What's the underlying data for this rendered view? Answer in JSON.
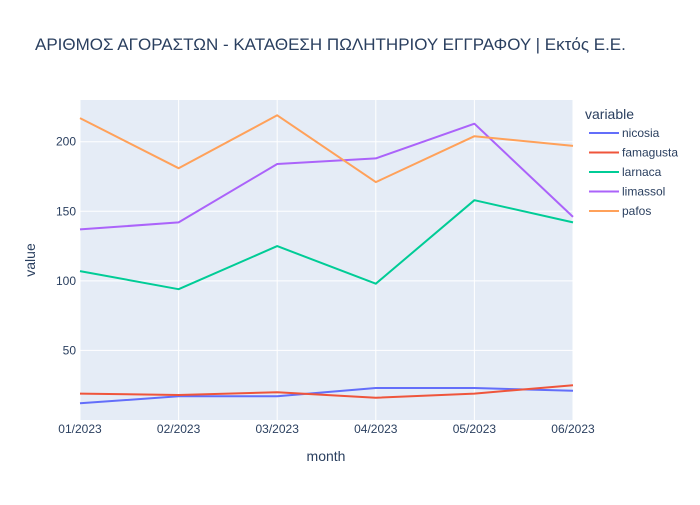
{
  "chart_data": {
    "type": "line",
    "title": "ΑΡΙΘΜΟΣ ΑΓΟΡΑΣΤΩΝ - ΚΑΤΑΘΕΣΗ ΠΩΛΗΤΗΡΙΟΥ ΕΓΓΡΑΦΟΥ | Εκτός Ε.Ε.",
    "xlabel": "month",
    "ylabel": "value",
    "x": [
      "01/2023",
      "02/2023",
      "03/2023",
      "04/2023",
      "05/2023",
      "06/2023"
    ],
    "y_ticks": [
      50,
      100,
      150,
      200
    ],
    "ylim": [
      0,
      230
    ],
    "grid": true,
    "legend": {
      "title": "variable",
      "placement": "right"
    },
    "series": [
      {
        "name": "nicosia",
        "color": "#636efa",
        "values": [
          12,
          17,
          17,
          23,
          23,
          21
        ]
      },
      {
        "name": "famagusta",
        "color": "#EF553B",
        "values": [
          19,
          18,
          20,
          16,
          19,
          25
        ]
      },
      {
        "name": "larnaca",
        "color": "#00cc96",
        "values": [
          107,
          94,
          125,
          98,
          158,
          142
        ]
      },
      {
        "name": "limassol",
        "color": "#ab63fa",
        "values": [
          137,
          142,
          184,
          188,
          213,
          146
        ]
      },
      {
        "name": "pafos",
        "color": "#FFA15A",
        "values": [
          217,
          181,
          219,
          171,
          204,
          197
        ]
      }
    ]
  }
}
